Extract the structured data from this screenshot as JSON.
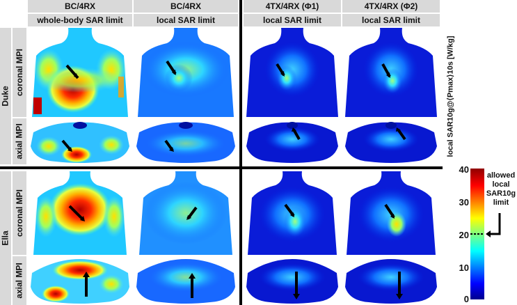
{
  "columns": [
    {
      "group": "BC/4RX",
      "sub": "whole-body SAR limit"
    },
    {
      "group": "BC/4RX",
      "sub": "local SAR limit"
    },
    {
      "group": "4TX/4RX (Φ1)",
      "sub": "local SAR limit"
    },
    {
      "group": "4TX/4RX (Φ2)",
      "sub": "local SAR limit"
    }
  ],
  "models": [
    {
      "name": "Duke",
      "views": [
        "coronal MPI",
        "axial MPI"
      ]
    },
    {
      "name": "Ella",
      "views": [
        "coronal MPI",
        "axial MPI"
      ]
    }
  ],
  "colorbar": {
    "title": "local SAR10g@⟨Pmax⟩10s [W/kg]",
    "ticks": [
      "40",
      "30",
      "20",
      "10",
      "0"
    ],
    "min": 0,
    "max": 40,
    "limit_value": 20,
    "limit_label": [
      "allowed",
      "local",
      "SAR10g",
      "limit"
    ]
  },
  "colors": {
    "header_bg": "#d9d9d9",
    "map_low": "#00008f",
    "map_high": "#8f0000",
    "separator": "#000000"
  }
}
